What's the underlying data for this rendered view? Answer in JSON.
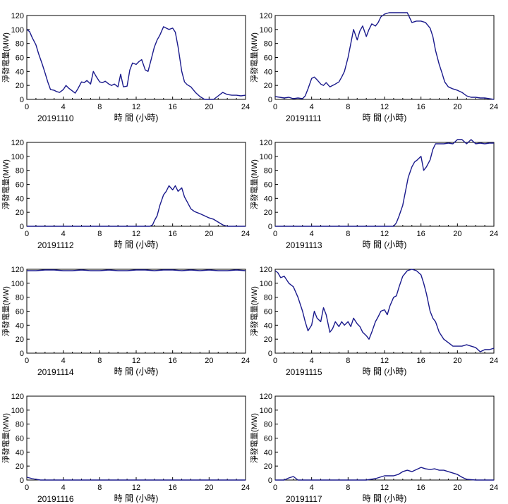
{
  "figure": {
    "xlabel": "時 間 (小時)",
    "ylabel": "淨發電量(MW)",
    "line_color": "#1a1a8c"
  },
  "chart_data": [
    {
      "type": "line",
      "date_label": "20191110",
      "xlim": [
        0,
        24
      ],
      "ylim": [
        0,
        120
      ],
      "xticks": [
        0,
        4,
        8,
        12,
        16,
        20,
        24
      ],
      "yticks": [
        0,
        20,
        40,
        60,
        80,
        100,
        120
      ],
      "xlabel": "時 間 (小時)",
      "ylabel": "淨發電量(MW)",
      "x": [
        0,
        0.3,
        0.6,
        1,
        1.3,
        1.7,
        2,
        2.3,
        2.6,
        3,
        3.3,
        3.6,
        4,
        4.3,
        4.6,
        5,
        5.3,
        5.6,
        6,
        6.3,
        6.6,
        7,
        7.3,
        7.6,
        8,
        8.3,
        8.6,
        9,
        9.3,
        9.6,
        10,
        10.3,
        10.6,
        11,
        11.3,
        11.6,
        12,
        12.3,
        12.6,
        13,
        13.3,
        13.6,
        14,
        14.3,
        14.6,
        15,
        15.3,
        15.6,
        16,
        16.3,
        16.6,
        17,
        17.3,
        17.6,
        18,
        18.5,
        19,
        19.5,
        20,
        20.5,
        21,
        21.5,
        22,
        22.5,
        23,
        23.5,
        24
      ],
      "y": [
        100,
        97,
        88,
        78,
        65,
        50,
        38,
        25,
        14,
        13,
        11,
        10,
        14,
        20,
        16,
        12,
        9,
        15,
        25,
        24,
        27,
        22,
        40,
        33,
        25,
        24,
        26,
        22,
        20,
        22,
        18,
        36,
        18,
        19,
        42,
        52,
        50,
        54,
        57,
        42,
        40,
        55,
        75,
        85,
        92,
        104,
        102,
        100,
        102,
        96,
        75,
        40,
        25,
        21,
        18,
        10,
        4,
        0,
        0,
        0,
        5,
        10,
        7,
        6,
        6,
        5,
        6
      ]
    },
    {
      "type": "line",
      "date_label": "20191111",
      "xlim": [
        0,
        24
      ],
      "ylim": [
        0,
        120
      ],
      "xticks": [
        0,
        4,
        8,
        12,
        16,
        20,
        24
      ],
      "yticks": [
        0,
        20,
        40,
        60,
        80,
        100,
        120
      ],
      "xlabel": "時 間 (小時)",
      "ylabel": "淨發電量(MW)",
      "x": [
        0,
        0.5,
        1,
        1.5,
        2,
        2.5,
        3,
        3.3,
        3.6,
        4,
        4.3,
        4.6,
        5,
        5.3,
        5.6,
        6,
        6.3,
        6.6,
        7,
        7.3,
        7.6,
        8,
        8.3,
        8.6,
        9,
        9.3,
        9.6,
        10,
        10.3,
        10.6,
        11,
        11.3,
        11.6,
        12,
        12.5,
        13,
        13.5,
        14,
        14.5,
        15,
        15.5,
        16,
        16.5,
        17,
        17.3,
        17.6,
        18,
        18.3,
        18.6,
        19,
        19.5,
        20,
        20.5,
        21,
        21.5,
        22,
        22.5,
        23,
        23.5,
        24
      ],
      "y": [
        4,
        3,
        2,
        3,
        1,
        2,
        1,
        5,
        15,
        30,
        32,
        28,
        22,
        20,
        24,
        18,
        20,
        22,
        25,
        32,
        40,
        60,
        80,
        100,
        85,
        98,
        105,
        90,
        100,
        108,
        105,
        110,
        118,
        122,
        124,
        124,
        124,
        124,
        124,
        110,
        112,
        112,
        110,
        102,
        90,
        70,
        50,
        38,
        25,
        18,
        15,
        13,
        10,
        5,
        3,
        3,
        2,
        2,
        1,
        0
      ]
    },
    {
      "type": "line",
      "date_label": "20191112",
      "xlim": [
        0,
        24
      ],
      "ylim": [
        0,
        120
      ],
      "xticks": [
        0,
        4,
        8,
        12,
        16,
        20,
        24
      ],
      "yticks": [
        0,
        20,
        40,
        60,
        80,
        100,
        120
      ],
      "xlabel": "時 間 (小時)",
      "ylabel": "淨發電量(MW)",
      "x": [
        0,
        4,
        8,
        12,
        13.5,
        13.8,
        14,
        14.3,
        14.6,
        15,
        15.3,
        15.6,
        16,
        16.3,
        16.6,
        17,
        17.3,
        17.6,
        18,
        18.3,
        18.6,
        19,
        19.5,
        20,
        20.5,
        21,
        21.5,
        22,
        24
      ],
      "y": [
        0,
        0,
        0,
        0,
        0,
        2,
        8,
        15,
        30,
        45,
        50,
        58,
        52,
        58,
        50,
        55,
        42,
        35,
        25,
        22,
        20,
        18,
        15,
        12,
        10,
        6,
        2,
        0,
        0
      ]
    },
    {
      "type": "line",
      "date_label": "20191113",
      "xlim": [
        0,
        24
      ],
      "ylim": [
        0,
        120
      ],
      "xticks": [
        0,
        4,
        8,
        12,
        16,
        20,
        24
      ],
      "yticks": [
        0,
        20,
        40,
        60,
        80,
        100,
        120
      ],
      "xlabel": "時 間 (小時)",
      "ylabel": "淨發電量(MW)",
      "x": [
        0,
        4,
        8,
        12,
        13,
        13.3,
        13.6,
        14,
        14.3,
        14.6,
        15,
        15.3,
        15.6,
        16,
        16.3,
        16.6,
        17,
        17.3,
        17.6,
        18,
        18.5,
        19,
        19.5,
        20,
        20.5,
        21,
        21.5,
        22,
        22.5,
        23,
        23.5,
        24
      ],
      "y": [
        0,
        0,
        0,
        0,
        0,
        5,
        15,
        30,
        50,
        70,
        85,
        92,
        95,
        100,
        80,
        85,
        95,
        110,
        118,
        118,
        118,
        119,
        118,
        124,
        124,
        118,
        124,
        118,
        119,
        118,
        119,
        119
      ]
    },
    {
      "type": "line",
      "date_label": "20191114",
      "xlim": [
        0,
        24
      ],
      "ylim": [
        0,
        120
      ],
      "xticks": [
        0,
        4,
        8,
        12,
        16,
        20,
        24
      ],
      "yticks": [
        0,
        20,
        40,
        60,
        80,
        100,
        120
      ],
      "xlabel": "時 間 (小時)",
      "ylabel": "淨發電量(MW)",
      "x": [
        0,
        1,
        2,
        3,
        4,
        5,
        6,
        7,
        8,
        9,
        10,
        11,
        12,
        13,
        14,
        15,
        16,
        17,
        18,
        19,
        20,
        21,
        22,
        23,
        24
      ],
      "y": [
        118,
        118,
        119,
        119,
        118,
        118,
        119,
        118,
        118,
        119,
        118,
        118,
        119,
        119,
        118,
        119,
        119,
        118,
        119,
        118,
        119,
        118,
        118,
        119,
        118
      ]
    },
    {
      "type": "line",
      "date_label": "20191115",
      "xlim": [
        0,
        24
      ],
      "ylim": [
        0,
        120
      ],
      "xticks": [
        0,
        4,
        8,
        12,
        16,
        20,
        24
      ],
      "yticks": [
        0,
        20,
        40,
        60,
        80,
        100,
        120
      ],
      "xlabel": "時 間 (小時)",
      "ylabel": "淨發電量(MW)",
      "x": [
        0,
        0.3,
        0.6,
        1,
        1.5,
        2,
        2.5,
        3,
        3.3,
        3.6,
        4,
        4.3,
        4.6,
        5,
        5.3,
        5.6,
        6,
        6.3,
        6.6,
        7,
        7.3,
        7.6,
        8,
        8.3,
        8.6,
        9,
        9.3,
        9.6,
        10,
        10.3,
        10.6,
        11,
        11.3,
        11.6,
        12,
        12.3,
        12.6,
        13,
        13.3,
        13.6,
        14,
        14.5,
        15,
        15.5,
        16,
        16.3,
        16.6,
        17,
        17.3,
        17.6,
        18,
        18.5,
        19,
        19.5,
        20,
        20.5,
        21,
        21.5,
        22,
        22.5,
        23,
        23.5,
        24
      ],
      "y": [
        118,
        115,
        108,
        110,
        100,
        95,
        80,
        60,
        45,
        32,
        40,
        60,
        50,
        45,
        65,
        55,
        30,
        35,
        45,
        38,
        45,
        40,
        45,
        38,
        50,
        42,
        38,
        30,
        25,
        20,
        30,
        45,
        52,
        60,
        62,
        55,
        68,
        80,
        82,
        95,
        110,
        118,
        120,
        118,
        112,
        100,
        85,
        60,
        50,
        45,
        30,
        20,
        15,
        10,
        10,
        10,
        12,
        10,
        8,
        2,
        5,
        5,
        7
      ]
    },
    {
      "type": "line",
      "date_label": "20191116",
      "xlim": [
        0,
        24
      ],
      "ylim": [
        0,
        120
      ],
      "xticks": [
        0,
        4,
        8,
        12,
        16,
        20,
        24
      ],
      "yticks": [
        0,
        20,
        40,
        60,
        80,
        100,
        120
      ],
      "xlabel": "時 間 (小時)",
      "ylabel": "淨發電量(MW)",
      "x": [
        0,
        0.3,
        0.6,
        1,
        1.5,
        2,
        4,
        8,
        12,
        16,
        20,
        24
      ],
      "y": [
        4,
        3,
        2,
        1,
        0,
        0,
        0,
        0,
        0,
        0,
        0,
        0
      ]
    },
    {
      "type": "line",
      "date_label": "20191117",
      "xlim": [
        0,
        24
      ],
      "ylim": [
        0,
        120
      ],
      "xticks": [
        0,
        4,
        8,
        12,
        16,
        20,
        24
      ],
      "yticks": [
        0,
        20,
        40,
        60,
        80,
        100,
        120
      ],
      "xlabel": "時 間 (小時)",
      "ylabel": "淨發電量(MW)",
      "x": [
        0,
        1,
        1.5,
        2,
        2.5,
        3,
        6,
        10,
        11,
        11.5,
        12,
        12.5,
        13,
        13.5,
        14,
        14.5,
        15,
        15.5,
        16,
        16.5,
        17,
        17.5,
        18,
        18.5,
        19,
        19.5,
        20,
        20.5,
        21,
        22,
        24
      ],
      "y": [
        0,
        0,
        3,
        5,
        0,
        0,
        0,
        0,
        2,
        4,
        6,
        6,
        6,
        8,
        12,
        14,
        12,
        15,
        18,
        16,
        15,
        16,
        14,
        14,
        12,
        10,
        8,
        4,
        1,
        0,
        0
      ]
    }
  ]
}
